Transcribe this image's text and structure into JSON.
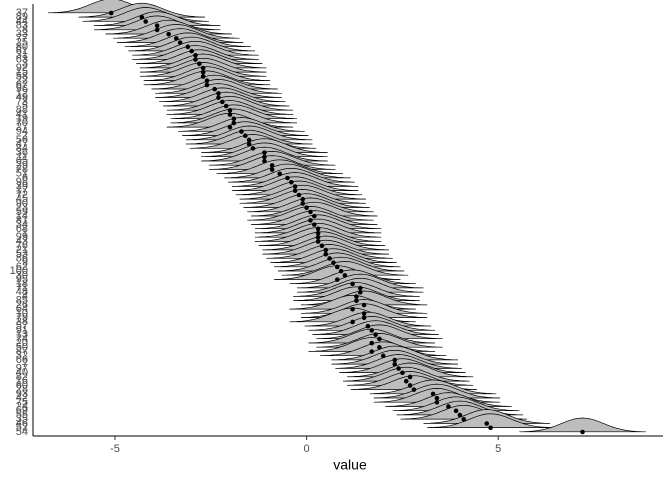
{
  "chart_data": {
    "type": "halfeye",
    "x_label": "value",
    "categories": [
      "37",
      "89",
      "44",
      "83",
      "8",
      "33",
      "77",
      "25",
      "80",
      "61",
      "31",
      "63",
      "3",
      "92",
      "15",
      "58",
      "22",
      "67",
      "96",
      "12",
      "49",
      "73",
      "5",
      "88",
      "41",
      "19",
      "70",
      "27",
      "94",
      "2",
      "56",
      "47",
      "84",
      "36",
      "11",
      "65",
      "29",
      "78",
      "51",
      "6",
      "98",
      "39",
      "17",
      "72",
      "45",
      "90",
      "23",
      "59",
      "14",
      "81",
      "34",
      "68",
      "1",
      "99",
      "43",
      "76",
      "21",
      "53",
      "86",
      "9",
      "62",
      "100",
      "30",
      "95",
      "18",
      "71",
      "48",
      "4",
      "85",
      "26",
      "64",
      "10",
      "79",
      "38",
      "57",
      "91",
      "13",
      "74",
      "20",
      "50",
      "87",
      "32",
      "66",
      "7",
      "97",
      "40",
      "82",
      "16",
      "60",
      "28",
      "93",
      "42",
      "75",
      "24",
      "69",
      "55",
      "35",
      "46",
      "52",
      "54"
    ],
    "values": [
      -5.1,
      -4.3,
      -4.2,
      -3.9,
      -3.9,
      -3.6,
      -3.4,
      -3.3,
      -3.1,
      -3.0,
      -2.9,
      -2.9,
      -2.8,
      -2.7,
      -2.7,
      -2.7,
      -2.6,
      -2.6,
      -2.4,
      -2.3,
      -2.3,
      -2.2,
      -2.1,
      -2.0,
      -2.0,
      -1.9,
      -1.9,
      -2.0,
      -1.7,
      -1.6,
      -1.5,
      -1.5,
      -1.4,
      -1.1,
      -1.1,
      -1.1,
      -0.9,
      -0.9,
      -0.7,
      -0.5,
      -0.4,
      -0.3,
      -0.3,
      -0.2,
      -0.1,
      -0.1,
      0,
      0.1,
      0.2,
      0.1,
      0.2,
      0.3,
      0.3,
      0.3,
      0.3,
      0.4,
      0.5,
      0.5,
      0.6,
      0.7,
      0.8,
      0.9,
      1.0,
      0.8,
      1.2,
      1.4,
      1.4,
      1.3,
      1.3,
      1.5,
      1.2,
      1.5,
      1.5,
      1.2,
      1.6,
      1.7,
      1.8,
      1.9,
      1.7,
      1.9,
      1.7,
      2.0,
      2.3,
      2.3,
      2.4,
      2.5,
      2.7,
      2.6,
      2.7,
      2.8,
      3.3,
      3.4,
      3.4,
      3.7,
      3.9,
      4.0,
      4.1,
      4.7,
      4.8,
      7.2
    ],
    "point_color": "#000000",
    "density_color": "#bdbdbd",
    "xlim": [
      -7.14,
      9.3
    ],
    "xticks": [
      -5,
      0,
      5
    ]
  }
}
